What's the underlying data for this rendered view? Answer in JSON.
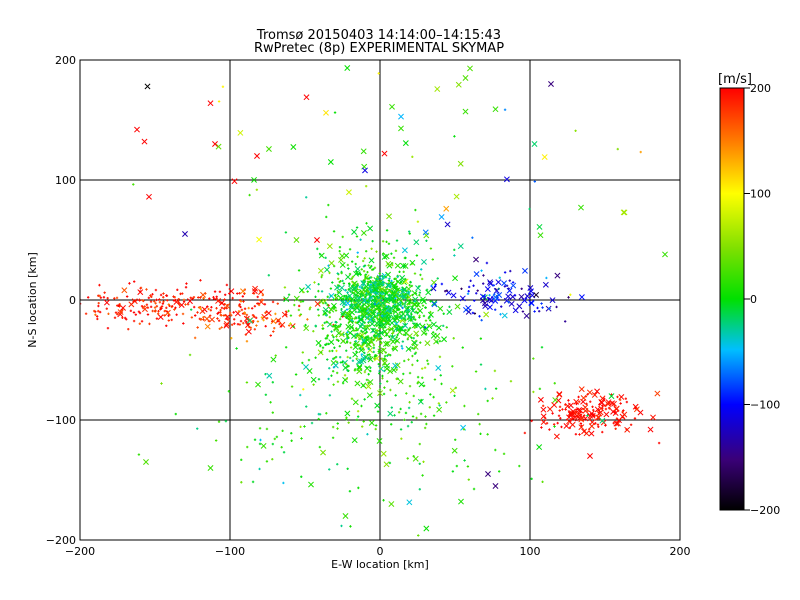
{
  "chart_data": {
    "type": "scatter",
    "title": "Tromsø 20150403 14:14:00–14:15:43",
    "subtitle": "RwPretec (8p) EXPERIMENTAL SKYMAP",
    "xlabel": "E-W location [km]",
    "ylabel": "N-S location [km]",
    "xlim": [
      -200,
      200
    ],
    "ylim": [
      -200,
      200
    ],
    "x_ticks": [
      "−200",
      "−100",
      "0",
      "100",
      "200"
    ],
    "y_ticks": [
      "−200",
      "−100",
      "0",
      "100",
      "200"
    ],
    "grid": true,
    "colorbar": {
      "label": "[m/s]",
      "min": -200,
      "max": 200,
      "ticks": [
        "−200",
        "−100",
        "0",
        "100",
        "200"
      ]
    },
    "clusters": [
      {
        "name": "west-red-band",
        "cx": -140,
        "cy": -5,
        "sx": 40,
        "sy": 8,
        "n": 260,
        "v": 190,
        "vs": 15,
        "cross": 0.15
      },
      {
        "name": "mid-west-red",
        "cx": -90,
        "cy": -15,
        "sx": 20,
        "sy": 8,
        "n": 90,
        "v": 175,
        "vs": 25,
        "cross": 0.2
      },
      {
        "name": "center-green",
        "cx": -5,
        "cy": -15,
        "sx": 22,
        "sy": 30,
        "n": 900,
        "v": 10,
        "vs": 25,
        "cross": 0.25
      },
      {
        "name": "center-core",
        "cx": 0,
        "cy": 0,
        "sx": 14,
        "sy": 10,
        "n": 350,
        "v": -5,
        "vs": 20,
        "cross": 0.3
      },
      {
        "name": "east-blue",
        "cx": 80,
        "cy": 5,
        "sx": 22,
        "sy": 10,
        "n": 110,
        "v": -110,
        "vs": 30,
        "cross": 0.4
      },
      {
        "name": "southeast-red",
        "cx": 140,
        "cy": -95,
        "sx": 18,
        "sy": 8,
        "n": 170,
        "v": 195,
        "vs": 8,
        "cross": 0.55
      },
      {
        "name": "south-scatter",
        "cx": 0,
        "cy": -100,
        "sx": 60,
        "sy": 40,
        "n": 200,
        "v": 10,
        "vs": 20,
        "cross": 0.15
      },
      {
        "name": "north-scatter",
        "cx": 20,
        "cy": 100,
        "sx": 80,
        "sy": 50,
        "n": 60,
        "v": 20,
        "vs": 60,
        "cross": 0.5
      }
    ],
    "points": [
      {
        "x": -155,
        "y": 178,
        "v": -210
      },
      {
        "x": -162,
        "y": 142,
        "v": 200
      },
      {
        "x": -157,
        "y": 132,
        "v": 200
      },
      {
        "x": -113,
        "y": 164,
        "v": 200
      },
      {
        "x": -110,
        "y": 130,
        "v": 200
      },
      {
        "x": -49,
        "y": 169,
        "v": 200
      },
      {
        "x": -36,
        "y": 156,
        "v": 110
      },
      {
        "x": -82,
        "y": 120,
        "v": 200
      },
      {
        "x": -97,
        "y": 99,
        "v": 200
      },
      {
        "x": -154,
        "y": 86,
        "v": 200
      },
      {
        "x": -130,
        "y": 55,
        "v": -130
      },
      {
        "x": -10,
        "y": 108,
        "v": -110
      },
      {
        "x": 114,
        "y": 180,
        "v": -150
      },
      {
        "x": 103,
        "y": 130,
        "v": -20
      },
      {
        "x": 60,
        "y": 193,
        "v": 30
      },
      {
        "x": 57,
        "y": 185,
        "v": 30
      },
      {
        "x": 8,
        "y": 161,
        "v": 20
      },
      {
        "x": 14,
        "y": 143,
        "v": 20
      },
      {
        "x": 57,
        "y": 157,
        "v": 20
      },
      {
        "x": 77,
        "y": 159,
        "v": 20
      },
      {
        "x": 134,
        "y": 77,
        "v": 20
      },
      {
        "x": 163,
        "y": 73,
        "v": 60
      },
      {
        "x": 107,
        "y": 54,
        "v": 20
      },
      {
        "x": -156,
        "y": -135,
        "v": 30
      },
      {
        "x": -113,
        "y": -140,
        "v": 20
      },
      {
        "x": 72,
        "y": -145,
        "v": -150
      },
      {
        "x": 77,
        "y": -155,
        "v": -150
      },
      {
        "x": 54,
        "y": -168,
        "v": 10
      },
      {
        "x": 140,
        "y": -130,
        "v": 200
      },
      {
        "x": -23,
        "y": -180,
        "v": 20
      },
      {
        "x": -42,
        "y": 50,
        "v": 200
      },
      {
        "x": 3,
        "y": 122,
        "v": 200
      },
      {
        "x": 190,
        "y": 38,
        "v": 20
      }
    ]
  }
}
